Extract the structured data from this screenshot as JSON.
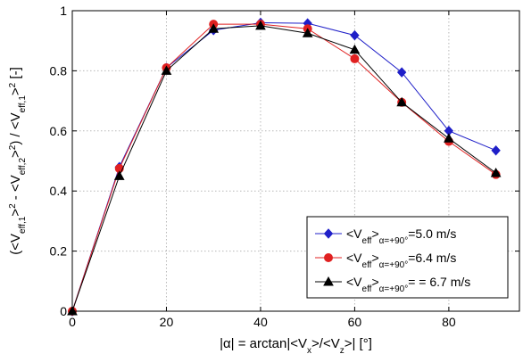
{
  "chart_data": {
    "type": "line",
    "title": "",
    "xlabel": "|α| = arctan|<V_x>/<V_z>| [°]",
    "ylabel": "(<V_eff,1>^2 - <V_eff,2>^2) / <V_eff,1>^2 [-]",
    "xlim": [
      0,
      95
    ],
    "ylim": [
      0,
      1
    ],
    "xticks": [
      0,
      20,
      40,
      60,
      80
    ],
    "yticks": [
      0,
      0.2,
      0.4,
      0.6,
      0.8,
      1
    ],
    "xtick_labels": [
      "0",
      "20",
      "40",
      "60",
      "80"
    ],
    "ytick_labels": [
      "0",
      "0.2",
      "0.4",
      "0.6",
      "0.8",
      "1"
    ],
    "grid": true,
    "legend_position": "bottom-right",
    "x": [
      0,
      10,
      20,
      30,
      40,
      50,
      60,
      70,
      80,
      90
    ],
    "series": [
      {
        "legend_label": "<V_eff>_α=+90°=5.0 m/s",
        "legend_main": "<V",
        "legend_sub1": "eff",
        "legend_mid": ">",
        "legend_sub2": "α=+90°",
        "legend_tail": "=5.0 m/s",
        "color": "#1f1fc8",
        "marker": "diamond",
        "values": [
          0.0,
          0.48,
          0.81,
          0.935,
          0.96,
          0.958,
          0.918,
          0.795,
          0.6,
          0.535
        ]
      },
      {
        "legend_label": "<V_eff>_α=+90°=6.4 m/s",
        "legend_main": "<V",
        "legend_sub1": "eff",
        "legend_mid": ">",
        "legend_sub2": "α=+90°",
        "legend_tail": "=6.4 m/s",
        "color": "#e02020",
        "marker": "circle",
        "values": [
          0.0,
          0.475,
          0.81,
          0.955,
          0.955,
          0.94,
          0.84,
          0.695,
          0.565,
          0.455
        ]
      },
      {
        "legend_label": "<V_eff>_α=+90°= = 6.7 m/s",
        "legend_main": "<V",
        "legend_sub1": "eff",
        "legend_mid": ">",
        "legend_sub2": "α=+90°",
        "legend_tail": "= = 6.7 m/s",
        "color": "#000000",
        "marker": "triangle",
        "values": [
          0.0,
          0.45,
          0.8,
          0.94,
          0.95,
          0.925,
          0.87,
          0.695,
          0.575,
          0.46
        ]
      }
    ]
  }
}
